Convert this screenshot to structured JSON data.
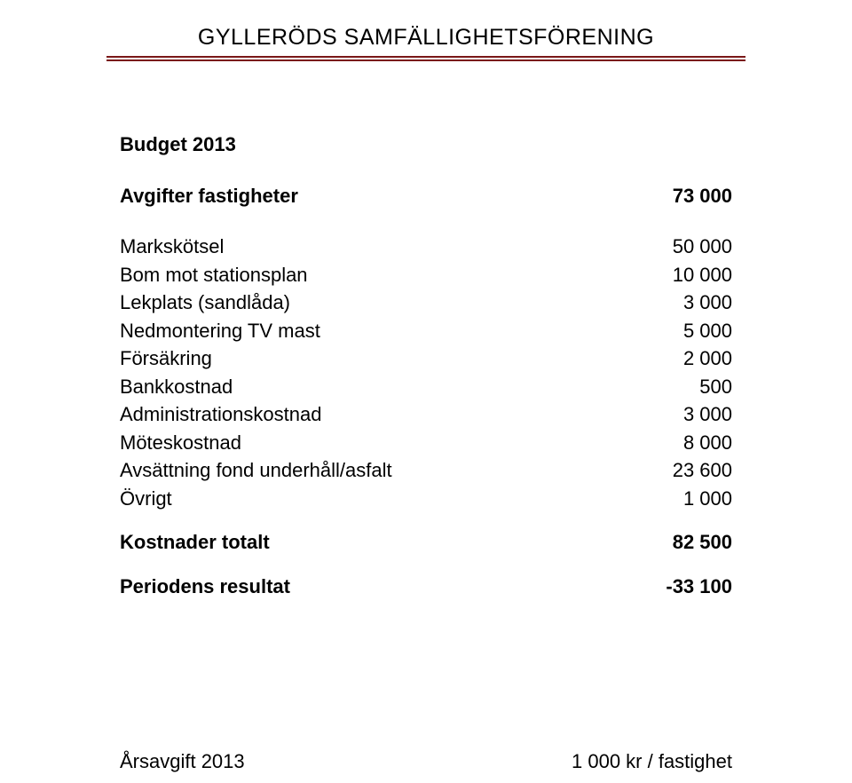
{
  "header": {
    "title": "GYLLERÖDS SAMFÄLLIGHETSFÖRENING"
  },
  "budget": {
    "title": "Budget 2013",
    "income": {
      "label": "Avgifter fastigheter",
      "value": "73 000"
    },
    "items": [
      {
        "label": "Markskötsel",
        "value": "50 000"
      },
      {
        "label": "Bom mot stationsplan",
        "value": "10 000"
      },
      {
        "label": "Lekplats (sandlåda)",
        "value": "3 000"
      },
      {
        "label": "Nedmontering TV mast",
        "value": "5 000"
      },
      {
        "label": "Försäkring",
        "value": "2 000"
      },
      {
        "label": "Bankkostnad",
        "value": "500"
      },
      {
        "label": "Administrationskostnad",
        "value": "3 000"
      },
      {
        "label": "Möteskostnad",
        "value": "8 000"
      },
      {
        "label": "Avsättning fond underhåll/asfalt",
        "value": "23 600"
      },
      {
        "label": "Övrigt",
        "value": "1 000"
      }
    ],
    "totalCosts": {
      "label": "Kostnader totalt",
      "value": "82 500"
    },
    "result": {
      "label": "Periodens resultat",
      "value": "-33 100"
    },
    "annualFee": {
      "label": "Årsavgift 2013",
      "value": "1 000 kr / fastighet"
    }
  }
}
